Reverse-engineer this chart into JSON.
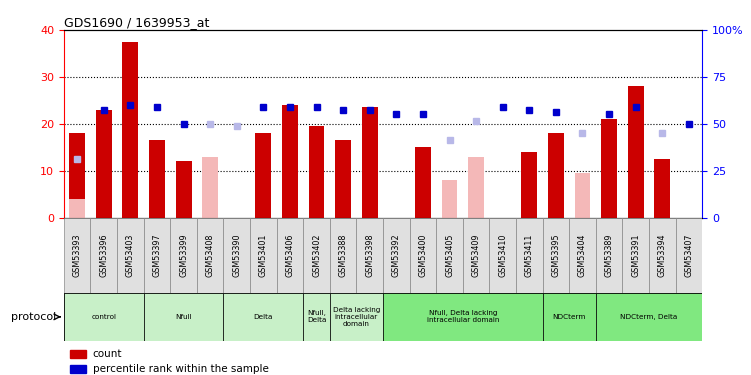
{
  "title": "GDS1690 / 1639953_at",
  "samples": [
    "GSM53393",
    "GSM53396",
    "GSM53403",
    "GSM53397",
    "GSM53399",
    "GSM53408",
    "GSM53390",
    "GSM53401",
    "GSM53406",
    "GSM53402",
    "GSM53388",
    "GSM53398",
    "GSM53392",
    "GSM53400",
    "GSM53405",
    "GSM53409",
    "GSM53410",
    "GSM53411",
    "GSM53395",
    "GSM53404",
    "GSM53389",
    "GSM53391",
    "GSM53394",
    "GSM53407"
  ],
  "count_values": [
    18,
    23,
    37.5,
    16.5,
    12,
    null,
    null,
    18,
    24,
    19.5,
    16.5,
    23.5,
    null,
    15,
    null,
    null,
    null,
    14,
    18,
    null,
    21,
    28,
    12.5,
    null
  ],
  "count_absent": [
    4,
    null,
    null,
    null,
    null,
    13,
    null,
    null,
    null,
    null,
    null,
    null,
    null,
    null,
    8,
    13,
    null,
    null,
    null,
    9.5,
    null,
    null,
    null,
    null
  ],
  "rank_values": [
    null,
    57.5,
    60,
    58.75,
    50,
    null,
    null,
    58.75,
    58.75,
    58.75,
    57.5,
    57.5,
    55,
    55,
    null,
    null,
    58.75,
    57.5,
    56.25,
    null,
    55,
    58.75,
    null,
    50
  ],
  "rank_absent": [
    31.25,
    null,
    null,
    null,
    null,
    50,
    48.75,
    null,
    null,
    null,
    null,
    null,
    null,
    null,
    41.25,
    51.25,
    null,
    null,
    null,
    45,
    null,
    null,
    45,
    null
  ],
  "ylim_left": [
    0,
    40
  ],
  "ylim_right": [
    0,
    100
  ],
  "yticks_left": [
    0,
    10,
    20,
    30,
    40
  ],
  "yticks_right": [
    0,
    25,
    50,
    75,
    100
  ],
  "ytick_labels_right": [
    "0",
    "25",
    "50",
    "75",
    "100%"
  ],
  "groups": [
    {
      "label": "control",
      "start": 0,
      "end": 2,
      "color": "#c8f0c8"
    },
    {
      "label": "Nfull",
      "start": 3,
      "end": 5,
      "color": "#c8f0c8"
    },
    {
      "label": "Delta",
      "start": 6,
      "end": 8,
      "color": "#c8f0c8"
    },
    {
      "label": "Nfull,\nDelta",
      "start": 9,
      "end": 9,
      "color": "#c8f0c8"
    },
    {
      "label": "Delta lacking\nintracellular\ndomain",
      "start": 10,
      "end": 11,
      "color": "#c8f0c8"
    },
    {
      "label": "Nfull, Delta lacking\nintracellular domain",
      "start": 12,
      "end": 17,
      "color": "#80e880"
    },
    {
      "label": "NDCterm",
      "start": 18,
      "end": 19,
      "color": "#80e880"
    },
    {
      "label": "NDCterm, Delta",
      "start": 20,
      "end": 23,
      "color": "#80e880"
    }
  ],
  "count_color": "#cc0000",
  "count_absent_color": "#f4b8b8",
  "rank_color": "#0000cc",
  "rank_absent_color": "#b8b8e8"
}
